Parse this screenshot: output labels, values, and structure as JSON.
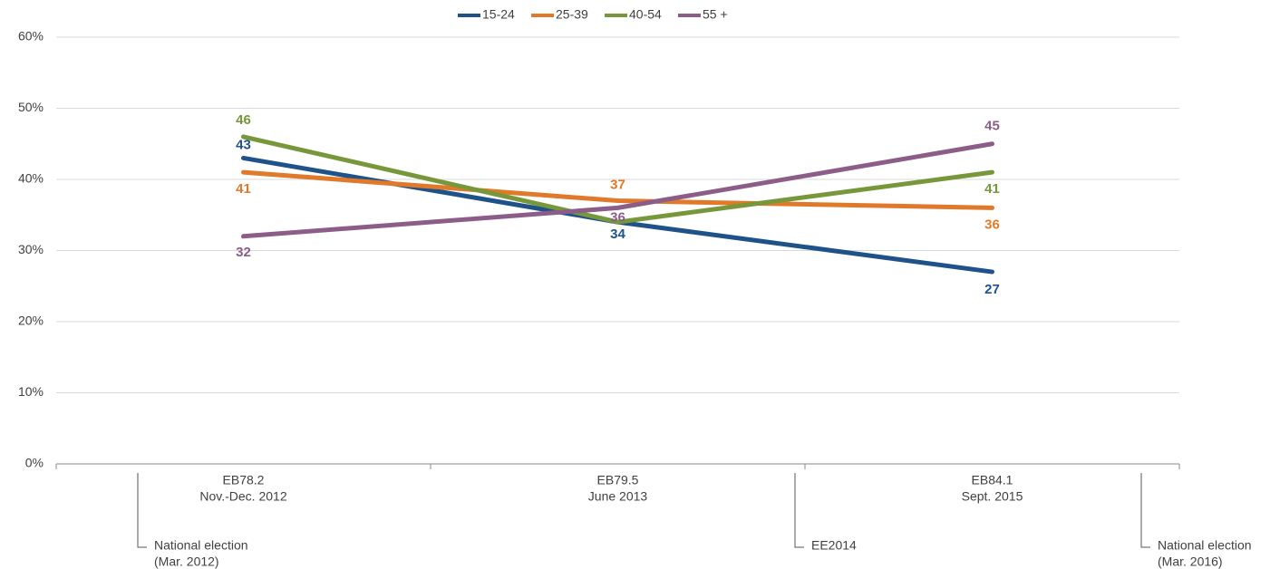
{
  "chart_data": {
    "type": "line",
    "categories": [
      [
        "EB78.2",
        "Nov.-Dec. 2012"
      ],
      [
        "EB79.5",
        "June 2013"
      ],
      [
        "EB84.1",
        "Sept. 2015"
      ]
    ],
    "series": [
      {
        "name": "15-24",
        "color": "#1f5289",
        "values": [
          43,
          34,
          27
        ]
      },
      {
        "name": "25-39",
        "color": "#e07a2a",
        "values": [
          41,
          37,
          36
        ]
      },
      {
        "name": "40-54",
        "color": "#77983a",
        "values": [
          46,
          34,
          41
        ]
      },
      {
        "name": "55 +",
        "color": "#8d5d8a",
        "values": [
          32,
          36,
          45
        ]
      }
    ],
    "ylim": [
      0,
      60
    ],
    "yticks": [
      {
        "value": 0,
        "label": "0%"
      },
      {
        "value": 10,
        "label": "10%"
      },
      {
        "value": 20,
        "label": "20%"
      },
      {
        "value": 30,
        "label": "30%"
      },
      {
        "value": 40,
        "label": "40%"
      },
      {
        "value": 50,
        "label": "50%"
      },
      {
        "value": 60,
        "label": "60%"
      }
    ],
    "grid": true,
    "legend": "top",
    "annotations": [
      [
        "National election",
        "(Mar. 2012)"
      ],
      [
        "EE2014"
      ],
      [
        "National election",
        "(Mar. 2016)"
      ]
    ]
  }
}
